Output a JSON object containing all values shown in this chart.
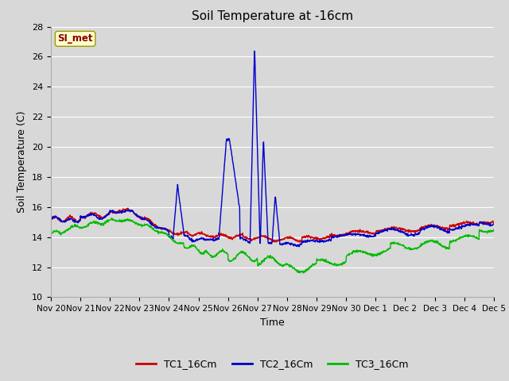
{
  "title": "Soil Temperature at -16cm",
  "xlabel": "Time",
  "ylabel": "Soil Temperature (C)",
  "ylim": [
    10,
    28
  ],
  "yticks": [
    10,
    12,
    14,
    16,
    18,
    20,
    22,
    24,
    26,
    28
  ],
  "fig_bg_color": "#d8d8d8",
  "plot_bg_color": "#d8d8d8",
  "grid_color": "#ffffff",
  "legend_label": "SI_met",
  "series": {
    "TC1_16Cm": {
      "color": "#cc0000",
      "linewidth": 1.0
    },
    "TC2_16Cm": {
      "color": "#0000cc",
      "linewidth": 1.0
    },
    "TC3_16Cm": {
      "color": "#00bb00",
      "linewidth": 1.0
    }
  },
  "xtick_labels": [
    "Nov 20",
    "Nov 21",
    "Nov 22",
    "Nov 23",
    "Nov 24",
    "Nov 25",
    "Nov 26",
    "Nov 27",
    "Nov 28",
    "Nov 29",
    "Nov 30",
    "Dec 1",
    "Dec 2",
    "Dec 3",
    "Dec 4",
    "Dec 5"
  ],
  "xtick_positions": [
    0,
    1,
    2,
    3,
    4,
    5,
    6,
    7,
    8,
    9,
    10,
    11,
    12,
    13,
    14,
    15
  ]
}
